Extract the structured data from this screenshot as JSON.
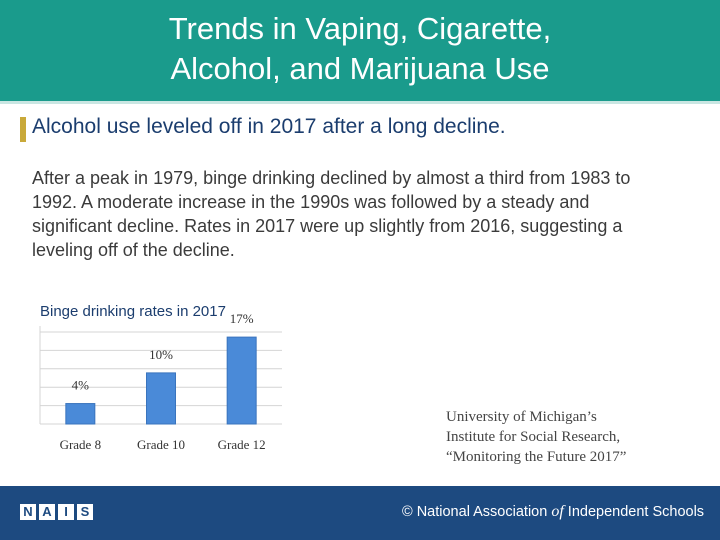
{
  "header": {
    "title_line1": "Trends in Vaping, Cigarette,",
    "title_line2": "Alcohol, and Marijuana Use",
    "color": "#1a9b8c"
  },
  "subhead": "Alcohol use leveled off in 2017 after a long decline.",
  "body": "After a peak in 1979, binge drinking declined by almost a third from 1983 to 1992. A moderate increase in the 1990s was followed by a steady and significant decline. Rates in 2017 were up slightly from 2016, suggesting a leveling off of the decline.",
  "chart_data": {
    "type": "bar",
    "title": "Binge drinking rates in 2017",
    "categories": [
      "Grade 8",
      "Grade 10",
      "Grade 12"
    ],
    "values": [
      4,
      10,
      17
    ],
    "data_labels": [
      "4%",
      "10%",
      "17%"
    ],
    "ylim": [
      0,
      18
    ],
    "grid": true,
    "bar_color": "#4a8ad8"
  },
  "source": {
    "line1": "University of Michigan’s",
    "line2": "Institute for Social Research,",
    "line3": "“Monitoring the Future 2017”"
  },
  "footer": {
    "org_prefix": "© National Association ",
    "org_of": "of",
    "org_suffix": " Independent Schools",
    "logo_letters": [
      "N",
      "A",
      "I",
      "S"
    ],
    "color": "#1d4a80"
  }
}
